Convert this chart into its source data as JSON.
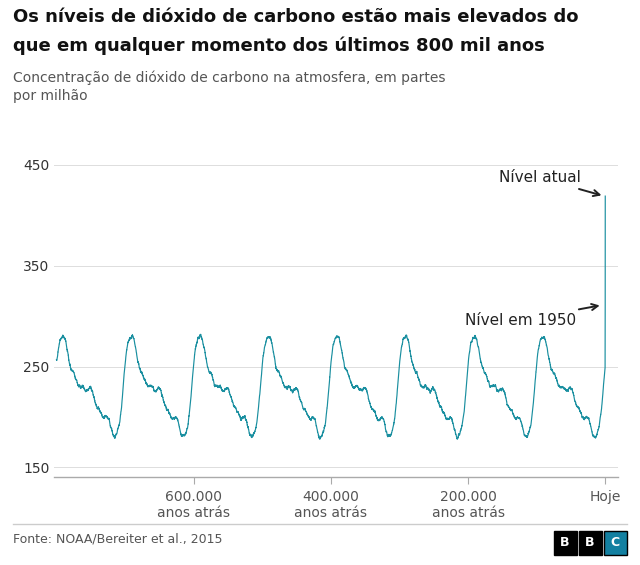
{
  "title_line1": "Os níveis de dióxido de carbono estão mais elevados do",
  "title_line2": "que em qualquer momento dos últimos 800 mil anos",
  "subtitle_line1": "Concentração de dióxido de carbono na atmosfera, em partes",
  "subtitle_line2": "por milhão",
  "ylabel_ticks": [
    150,
    250,
    350,
    450
  ],
  "ylim": [
    140,
    465
  ],
  "xlim": [
    -803000,
    18000
  ],
  "xtick_positions": [
    -600000,
    -400000,
    -200000,
    0
  ],
  "xtick_labels": [
    "600.000\nanos atrás",
    "400.000\nanos atrás",
    "200.000\nanos atrás",
    "Hoje"
  ],
  "line_color": "#1a8fa0",
  "annotation_atual_text": "Nível atual",
  "annotation_1950_text": "Nível em 1950",
  "source_text": "Fonte: NOAA/Bereiter et al., 2015",
  "bbc_letters": [
    "B",
    "B",
    "C"
  ],
  "bbc_bg_colors": [
    "#000000",
    "#000000",
    "#1380A1"
  ],
  "background_color": "#ffffff",
  "title_fontsize": 13,
  "subtitle_fontsize": 10,
  "tick_fontsize": 10,
  "annotation_fontsize": 11,
  "source_fontsize": 9
}
